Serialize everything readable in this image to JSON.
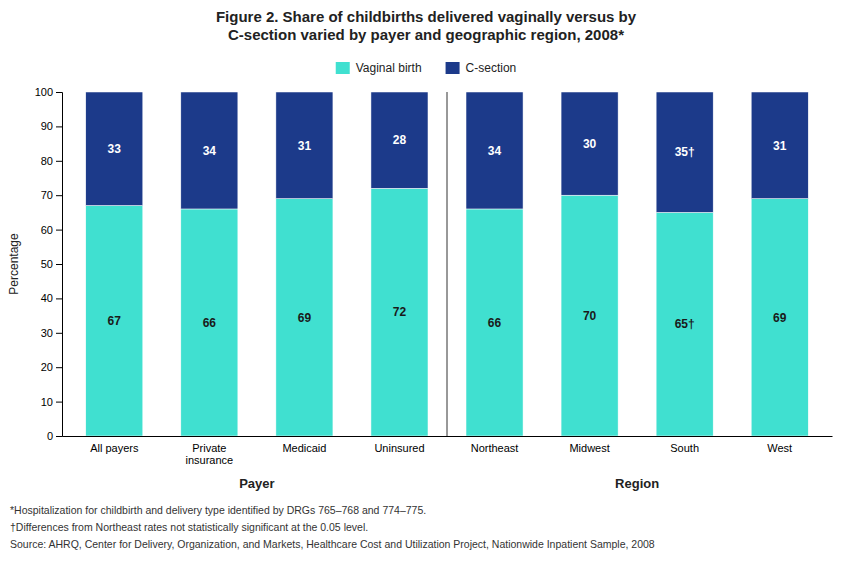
{
  "chart_data": {
    "type": "bar",
    "stacked": true,
    "title": "Figure 2. Share of childbirths delivered vaginally versus by\nC-section varied by payer and geographic region, 2008*",
    "categories": [
      "All payers",
      "Private\ninsurance",
      "Medicaid",
      "Uninsured",
      "Northeast",
      "Midwest",
      "South",
      "West"
    ],
    "series": [
      {
        "name": "Vaginal birth",
        "color": "#40E0D0",
        "values": [
          67,
          66,
          69,
          72,
          66,
          70,
          65,
          69
        ],
        "value_labels": [
          "67",
          "66",
          "69",
          "72",
          "66",
          "70",
          "65†",
          "69"
        ]
      },
      {
        "name": "C-section",
        "color": "#1C3A8A",
        "values": [
          33,
          34,
          31,
          28,
          34,
          30,
          35,
          31
        ],
        "value_labels": [
          "33",
          "34",
          "31",
          "28",
          "34",
          "30",
          "35†",
          "31"
        ]
      }
    ],
    "ylabel": "Percentage",
    "ylim": [
      0,
      100
    ],
    "yticks": [
      0,
      10,
      20,
      30,
      40,
      50,
      60,
      70,
      80,
      90,
      100
    ],
    "data_labels": true,
    "legend": "top",
    "annotations": [
      "Payer",
      "Region"
    ],
    "footnotes": [
      "*Hospitalization for childbirth and delivery type identified by DRGs 765–768 and 774–775.",
      "†Differences from Northeast rates not statistically significant at the 0.05 level."
    ],
    "source": "Source: AHRQ, Center for Delivery, Organization, and Markets, Healthcare Cost and Utilization Project, Nationwide Inpatient Sample, 2008"
  }
}
